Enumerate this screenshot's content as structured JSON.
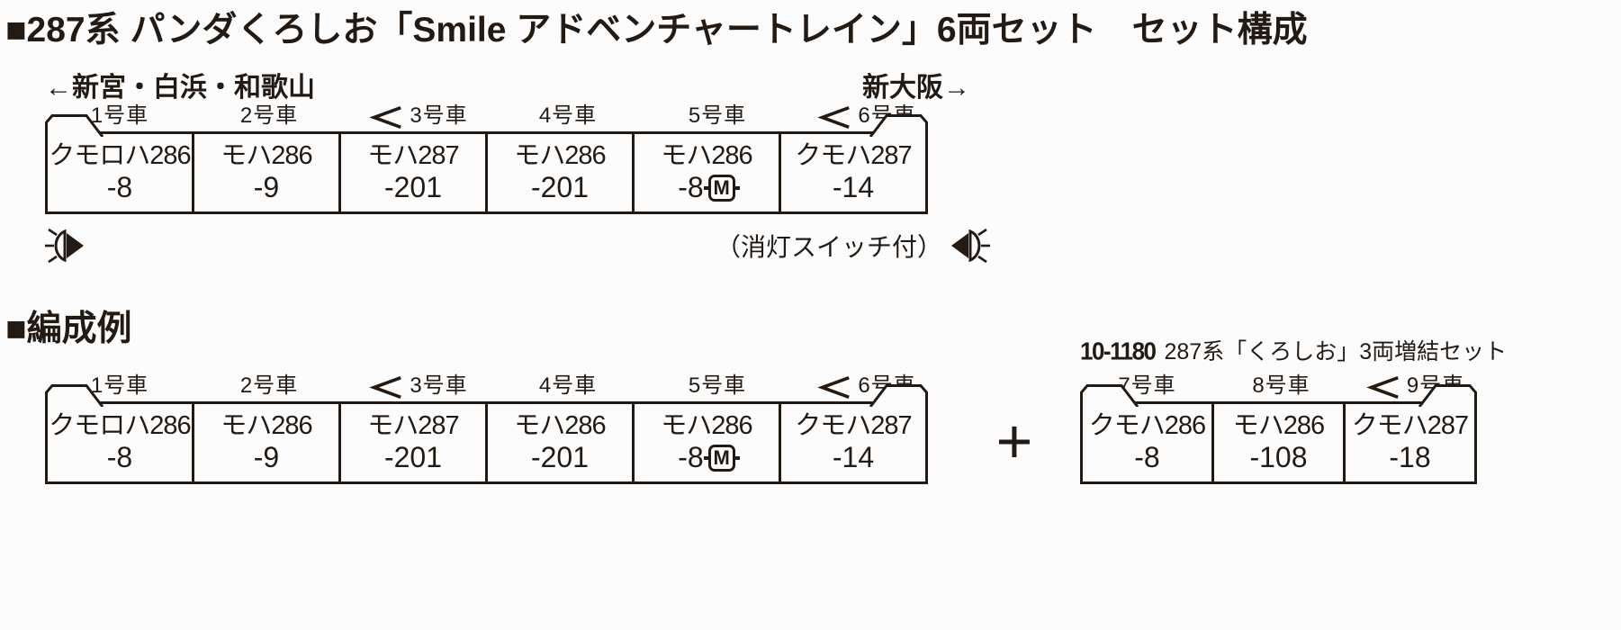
{
  "colors": {
    "ink": "#231a13",
    "bg": "#fcfcfc"
  },
  "title": "■287系 パンダくろしお「Smile アドベンチャートレイン」6両セット　セット構成",
  "set_composition": {
    "direction_left": "←新宮・白浜・和歌山",
    "direction_right": "新大阪→",
    "lamp_note": "（消灯スイッチ付）",
    "left_lamp_icon": "headlight-rays-left",
    "right_lamp_icon": "headlight-rays-right",
    "motor_badge": "M",
    "cars": [
      {
        "no": "1号車",
        "name": "クモロハ286",
        "number": "-8",
        "cab": "left",
        "coupler": false,
        "motor": false
      },
      {
        "no": "2号車",
        "name": "モハ286",
        "number": "-9",
        "cab": "",
        "coupler": false,
        "motor": false
      },
      {
        "no": "3号車",
        "name": "モハ287",
        "number": "-201",
        "cab": "",
        "coupler": true,
        "motor": false
      },
      {
        "no": "4号車",
        "name": "モハ286",
        "number": "-201",
        "cab": "",
        "coupler": false,
        "motor": false
      },
      {
        "no": "5号車",
        "name": "モハ286",
        "number": "-8",
        "cab": "",
        "coupler": false,
        "motor": true
      },
      {
        "no": "6号車",
        "name": "クモハ287",
        "number": "-14",
        "cab": "right",
        "coupler": true,
        "motor": false
      }
    ]
  },
  "formation_example": {
    "heading": "■編成例",
    "plus_sign": "+",
    "base_set": {
      "cars": [
        {
          "no": "1号車",
          "name": "クモロハ286",
          "number": "-8",
          "cab": "left",
          "coupler": false,
          "motor": false
        },
        {
          "no": "2号車",
          "name": "モハ286",
          "number": "-9",
          "cab": "",
          "coupler": false,
          "motor": false
        },
        {
          "no": "3号車",
          "name": "モハ287",
          "number": "-201",
          "cab": "",
          "coupler": true,
          "motor": false
        },
        {
          "no": "4号車",
          "name": "モハ286",
          "number": "-201",
          "cab": "",
          "coupler": false,
          "motor": false
        },
        {
          "no": "5号車",
          "name": "モハ286",
          "number": "-8",
          "cab": "",
          "coupler": false,
          "motor": true
        },
        {
          "no": "6号車",
          "name": "クモハ287",
          "number": "-14",
          "cab": "right",
          "coupler": true,
          "motor": false
        }
      ]
    },
    "addon_set": {
      "product_no": "10-1180",
      "product_name": "287系「くろしお」3両増結セット",
      "cars": [
        {
          "no": "7号車",
          "name": "クモハ286",
          "number": "-8",
          "cab": "left",
          "coupler": false,
          "motor": false
        },
        {
          "no": "8号車",
          "name": "モハ286",
          "number": "-108",
          "cab": "",
          "coupler": false,
          "motor": false
        },
        {
          "no": "9号車",
          "name": "クモハ287",
          "number": "-18",
          "cab": "right",
          "coupler": true,
          "motor": false
        }
      ]
    }
  }
}
